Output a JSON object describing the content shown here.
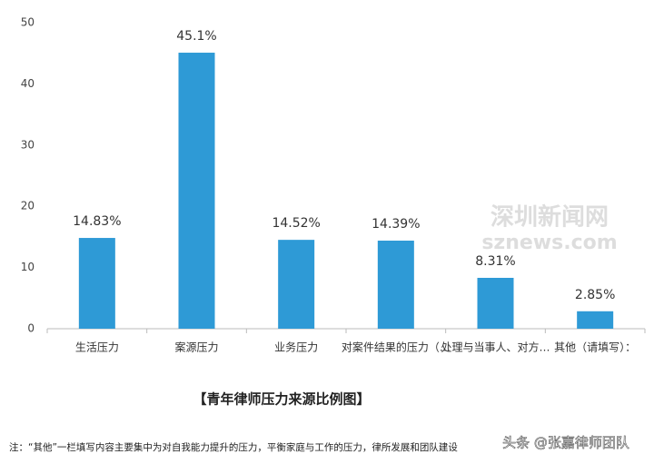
{
  "chart_data": {
    "type": "bar",
    "title": "【青年律师压力来源比例图】",
    "categories": [
      "生活压力",
      "案源压力",
      "业务压力",
      "对案件结果的压力（…",
      "处理与当事人、对方…",
      "其他（请填写）："
    ],
    "values": [
      14.83,
      45.1,
      14.52,
      14.39,
      8.31,
      2.85
    ],
    "value_labels": [
      "14.83%",
      "45.1%",
      "14.52%",
      "14.39%",
      "8.31%",
      "2.85%"
    ],
    "color": "#2e9ad6",
    "ylim": [
      0,
      50
    ],
    "yticks": [
      0,
      10,
      20,
      30,
      40,
      50
    ],
    "grid": false,
    "note": "注：“其他”一栏填写内容主要集中为对自我能力提升的压力，平衡家庭与工作的压力，律所发展和团队建设",
    "watermarks": [
      "深圳新闻网",
      "sznews.com",
      "头条 @张嘉律师团队"
    ]
  }
}
